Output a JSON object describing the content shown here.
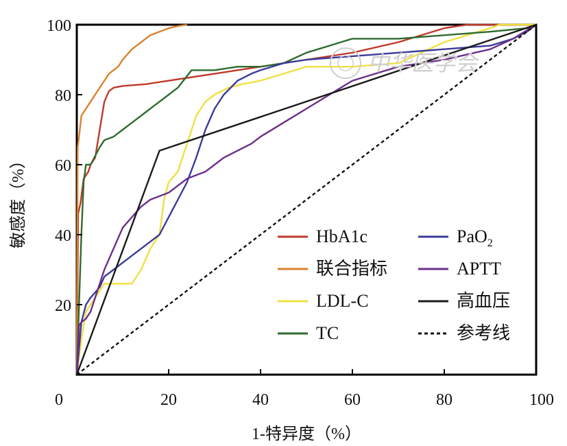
{
  "chart_data": {
    "type": "line",
    "title": "",
    "xlabel": "1-特异度（%）",
    "ylabel": "敏感度（%）",
    "xlim": [
      0,
      100
    ],
    "ylim": [
      0,
      100
    ],
    "xticks": [
      "0",
      "20",
      "40",
      "60",
      "80",
      "100"
    ],
    "yticks": [
      "20",
      "40",
      "60",
      "80",
      "100"
    ],
    "legend_position": "bottom-right",
    "watermark": "中华医学会",
    "series": [
      {
        "name": "HbA1c",
        "color": "#c0392b",
        "dash": "",
        "x": [
          0,
          0.3,
          0.8,
          1.5,
          2.5,
          3,
          4,
          5,
          6,
          7,
          8,
          10,
          15,
          20,
          30,
          40,
          50,
          60,
          70,
          80,
          85,
          100
        ],
        "y": [
          0,
          46,
          49,
          56,
          58,
          60,
          62,
          70,
          78,
          81,
          82,
          82.5,
          83,
          84,
          86,
          88,
          90,
          92,
          95,
          99,
          100,
          100
        ]
      },
      {
        "name": "联合指标",
        "color": "#d9822b",
        "dash": "",
        "x": [
          0,
          0.2,
          0.5,
          1,
          2,
          3,
          4,
          5,
          6,
          7,
          8,
          9,
          10,
          12,
          14,
          16,
          18,
          20,
          22,
          24
        ],
        "y": [
          0,
          65,
          68,
          74,
          76,
          78,
          80,
          82,
          84,
          86,
          87,
          88,
          90,
          93,
          95,
          97,
          98,
          99,
          99.6,
          100
        ]
      },
      {
        "name": "LDL-C",
        "color": "#f0e040",
        "dash": "",
        "x": [
          0,
          1,
          2,
          3,
          5,
          6,
          8,
          10,
          12,
          14,
          16,
          17,
          18,
          19,
          20,
          22,
          23,
          24,
          25,
          26,
          28,
          30,
          33,
          36,
          40,
          45,
          50,
          60,
          70,
          80,
          90,
          92,
          100
        ],
        "y": [
          0,
          10,
          18,
          20,
          24,
          26,
          26,
          26,
          26,
          30,
          36,
          38,
          40,
          50,
          55,
          58,
          62,
          66,
          70,
          74,
          78,
          80,
          82,
          83,
          84,
          86,
          88,
          88,
          89,
          95,
          99,
          100,
          100
        ]
      },
      {
        "name": "TC",
        "color": "#2e6b2e",
        "dash": "",
        "x": [
          0,
          0.5,
          1,
          1.5,
          2,
          3,
          5,
          6,
          8,
          10,
          12,
          15,
          18,
          20,
          22,
          25,
          30,
          35,
          40,
          45,
          50,
          55,
          60,
          70,
          80,
          90,
          98,
          100
        ],
        "y": [
          0,
          20,
          40,
          55,
          60,
          60,
          65,
          67,
          68,
          70,
          72,
          75,
          78,
          80,
          82,
          87,
          87,
          88,
          88,
          89,
          92,
          94,
          96,
          96,
          97,
          98,
          99,
          100
        ]
      },
      {
        "name": "PaO2",
        "color": "#3a3a9a",
        "dash": "",
        "x": [
          0,
          1,
          2,
          3,
          5,
          6,
          8,
          10,
          12,
          14,
          16,
          18,
          20,
          22,
          24,
          26,
          28,
          30,
          32,
          35,
          38,
          40,
          45,
          50,
          60,
          70,
          80,
          90,
          95,
          98,
          100
        ],
        "y": [
          0,
          15,
          20,
          22,
          25,
          28,
          30,
          32,
          34,
          36,
          38,
          40,
          45,
          50,
          55,
          62,
          70,
          76,
          80,
          84,
          86,
          87,
          89,
          90,
          91,
          92,
          93,
          94,
          96,
          98,
          100
        ]
      },
      {
        "name": "APTT",
        "color": "#6b2e8a",
        "dash": "",
        "x": [
          0,
          0.5,
          1,
          2,
          3,
          4,
          5,
          6,
          8,
          10,
          12,
          14,
          16,
          18,
          20,
          22,
          24,
          26,
          28,
          30,
          32,
          35,
          38,
          40,
          45,
          50,
          55,
          60,
          65,
          70,
          80,
          90,
          95,
          100
        ],
        "y": [
          0,
          14,
          15,
          16,
          18,
          22,
          26,
          30,
          36,
          42,
          45,
          48,
          50,
          51,
          52,
          54,
          56,
          57,
          58,
          60,
          62,
          64,
          66,
          68,
          72,
          76,
          80,
          84,
          86,
          88,
          90,
          93,
          96,
          100
        ]
      },
      {
        "name": "高血压",
        "color": "#1a1a1a",
        "dash": "",
        "x": [
          0,
          18,
          100
        ],
        "y": [
          0,
          64,
          100
        ]
      },
      {
        "name": "参考线",
        "color": "#111111",
        "dash": "5,4",
        "x": [
          0,
          100
        ],
        "y": [
          0,
          100
        ]
      }
    ]
  }
}
